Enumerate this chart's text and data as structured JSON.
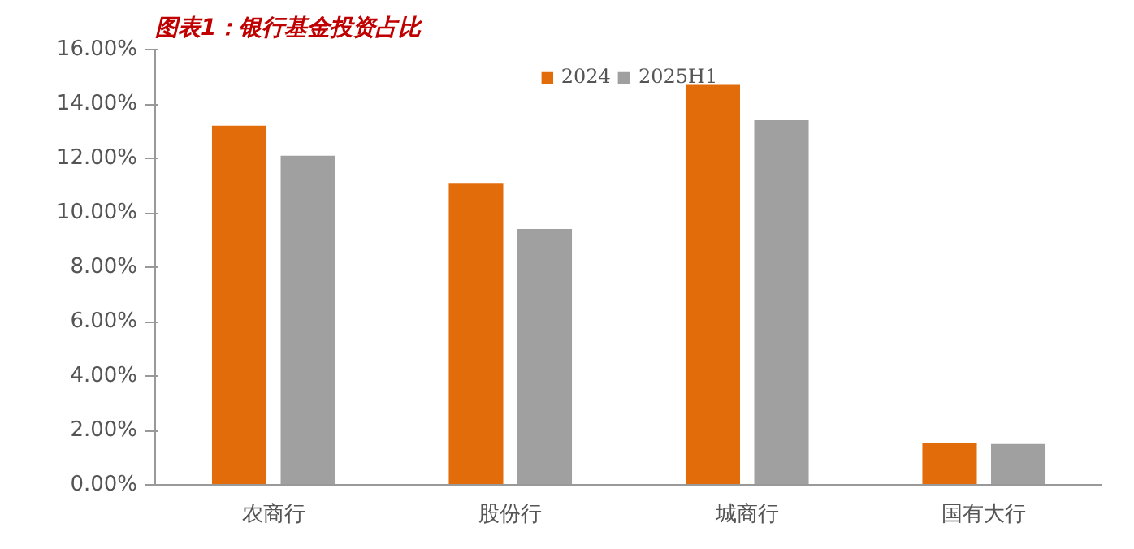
{
  "chart_data": {
    "type": "bar",
    "title": "图表1：银行基金投资占比",
    "categories": [
      "农商行",
      "股份行",
      "城商行",
      "国有大行"
    ],
    "series": [
      {
        "name": "2024",
        "color": "#e36c0a",
        "values": [
          13.2,
          11.1,
          14.7,
          1.55
        ]
      },
      {
        "name": "2025H1",
        "color": "#a0a0a0",
        "values": [
          12.1,
          9.4,
          13.4,
          1.5
        ]
      }
    ],
    "ylim": [
      0,
      16
    ],
    "yticks": [
      {
        "value": 0,
        "label": "0.00%"
      },
      {
        "value": 2,
        "label": "2.00%"
      },
      {
        "value": 4,
        "label": "4.00%"
      },
      {
        "value": 6,
        "label": "6.00%"
      },
      {
        "value": 8,
        "label": "8.00%"
      },
      {
        "value": 10,
        "label": "10.00%"
      },
      {
        "value": 12,
        "label": "12.00%"
      },
      {
        "value": 14,
        "label": "14.00%"
      },
      {
        "value": 16,
        "label": "16.00%"
      }
    ],
    "grid": false,
    "legend": "top"
  }
}
